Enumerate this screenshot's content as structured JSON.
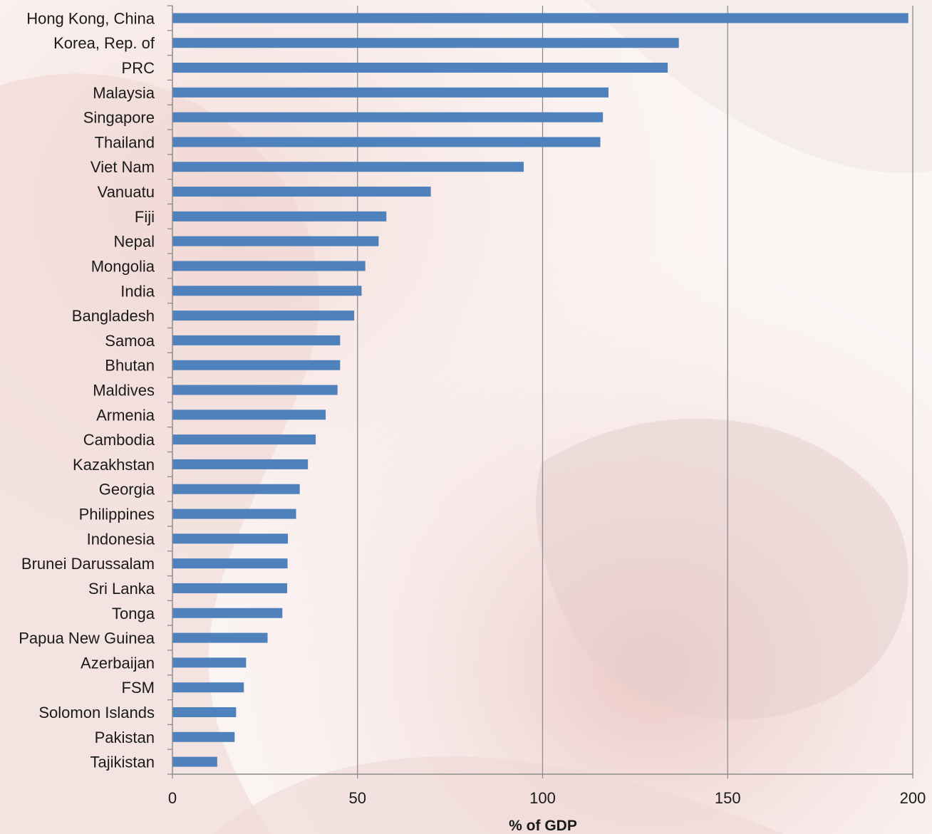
{
  "chart_data": {
    "type": "bar",
    "orientation": "horizontal",
    "categories": [
      "Hong Kong, China",
      "Korea, Rep. of",
      "PRC",
      "Malaysia",
      "Singapore",
      "Thailand",
      "Viet Nam",
      "Vanuatu",
      "Fiji",
      "Nepal",
      "Mongolia",
      "India",
      "Bangladesh",
      "Samoa",
      "Bhutan",
      "Maldives",
      "Armenia",
      "Cambodia",
      "Kazakhstan",
      "Georgia",
      "Philippines",
      "Indonesia",
      "Brunei Darussalam",
      "Sri Lanka",
      "Tonga",
      "Papua New Guinea",
      "Azerbaijan",
      "FSM",
      "Solomon Islands",
      "Pakistan",
      "Tajikistan"
    ],
    "values": [
      198.8,
      136.8,
      133.8,
      117.8,
      116.3,
      115.6,
      94.9,
      69.8,
      57.8,
      55.7,
      52.1,
      51.1,
      49.1,
      45.3,
      45.3,
      44.6,
      41.4,
      38.7,
      36.6,
      34.4,
      33.4,
      31.2,
      31.1,
      31.0,
      29.7,
      25.7,
      19.9,
      19.3,
      17.2,
      16.8,
      12.1
    ],
    "xlabel": "% of GDP",
    "ylabel": "",
    "title": "",
    "xlim": [
      0,
      200
    ],
    "xticks": [
      0,
      50,
      100,
      150,
      200
    ],
    "grid": "vertical",
    "bar_color": "#4f81bd",
    "grid_color": "#8c8c8c"
  }
}
